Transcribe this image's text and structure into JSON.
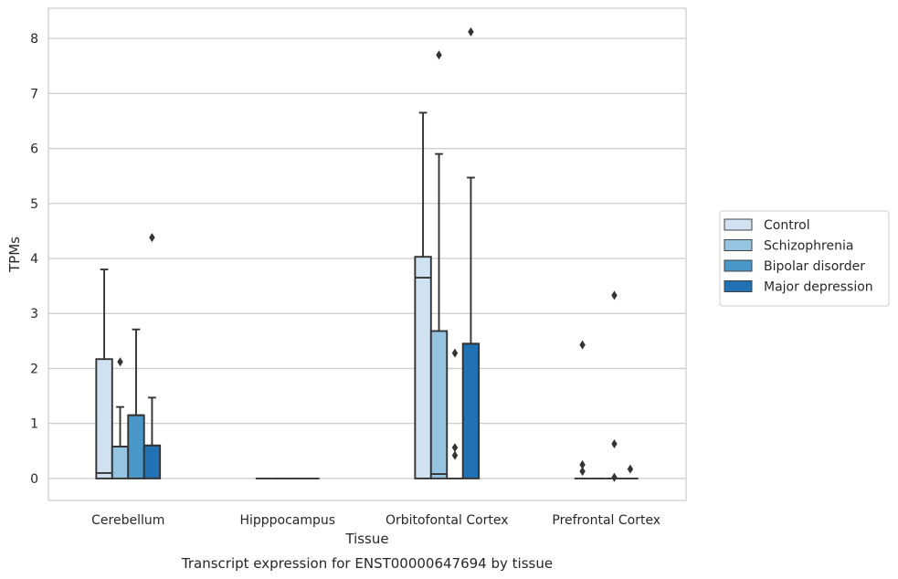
{
  "caption": "Transcript expression for ENST00000647694 by tissue",
  "chart_data": {
    "type": "box",
    "xlabel": "Tissue",
    "ylabel": "TPMs",
    "ylim": [
      -0.4,
      8.55
    ],
    "yticks": [
      0,
      1,
      2,
      3,
      4,
      5,
      6,
      7,
      8
    ],
    "grid": "y",
    "legend_position": "right",
    "categories": [
      "Cerebellum",
      "Hipppocampus",
      "Orbitofontal Cortex",
      "Prefrontal Cortex"
    ],
    "series": [
      {
        "name": "Control",
        "color": "#d0e1f2",
        "boxes": [
          {
            "q1": 0,
            "median": 0.1,
            "q3": 2.17,
            "whisker_low": 0,
            "whisker_high": 3.8,
            "outliers": []
          },
          {
            "q1": 0,
            "median": 0,
            "q3": 0,
            "whisker_low": 0,
            "whisker_high": 0,
            "outliers": []
          },
          {
            "q1": 0,
            "median": 3.65,
            "q3": 4.03,
            "whisker_low": 0,
            "whisker_high": 6.65,
            "outliers": []
          },
          {
            "q1": 0,
            "median": 0,
            "q3": 0,
            "whisker_low": 0,
            "whisker_high": 0,
            "outliers": [
              2.43,
              0.25,
              0.13
            ]
          }
        ]
      },
      {
        "name": "Schizophrenia",
        "color": "#94c4df",
        "boxes": [
          {
            "q1": 0,
            "median": 0.58,
            "q3": 0.58,
            "whisker_low": 0,
            "whisker_high": 1.3,
            "outliers": [
              2.12
            ]
          },
          {
            "q1": 0,
            "median": 0,
            "q3": 0,
            "whisker_low": 0,
            "whisker_high": 0,
            "outliers": []
          },
          {
            "q1": 0,
            "median": 0.08,
            "q3": 2.68,
            "whisker_low": 0,
            "whisker_high": 5.9,
            "outliers": [
              7.7
            ]
          },
          {
            "q1": 0,
            "median": 0,
            "q3": 0,
            "whisker_low": 0,
            "whisker_high": 0,
            "outliers": []
          }
        ]
      },
      {
        "name": "Bipolar disorder",
        "color": "#4a98c9",
        "boxes": [
          {
            "q1": 0,
            "median": 1.15,
            "q3": 1.15,
            "whisker_low": 0,
            "whisker_high": 2.71,
            "outliers": []
          },
          {
            "q1": 0,
            "median": 0,
            "q3": 0,
            "whisker_low": 0,
            "whisker_high": 0,
            "outliers": []
          },
          {
            "q1": 0,
            "median": 0,
            "q3": 0,
            "whisker_low": 0,
            "whisker_high": 0,
            "outliers": [
              2.28,
              0.56,
              0.42
            ]
          },
          {
            "q1": 0,
            "median": 0,
            "q3": 0,
            "whisker_low": 0,
            "whisker_high": 0,
            "outliers": [
              3.33,
              0.63,
              0.02
            ]
          }
        ]
      },
      {
        "name": "Major depression",
        "color": "#2171b5",
        "boxes": [
          {
            "q1": 0,
            "median": 0.6,
            "q3": 0.6,
            "whisker_low": 0,
            "whisker_high": 1.47,
            "outliers": [
              4.38
            ]
          },
          {
            "q1": 0,
            "median": 0,
            "q3": 0,
            "whisker_low": 0,
            "whisker_high": 0,
            "outliers": []
          },
          {
            "q1": 0,
            "median": 2.45,
            "q3": 2.45,
            "whisker_low": 0,
            "whisker_high": 5.47,
            "outliers": [
              8.12
            ]
          },
          {
            "q1": 0,
            "median": 0,
            "q3": 0,
            "whisker_low": 0,
            "whisker_high": 0,
            "outliers": [
              0.17
            ]
          }
        ]
      }
    ]
  }
}
